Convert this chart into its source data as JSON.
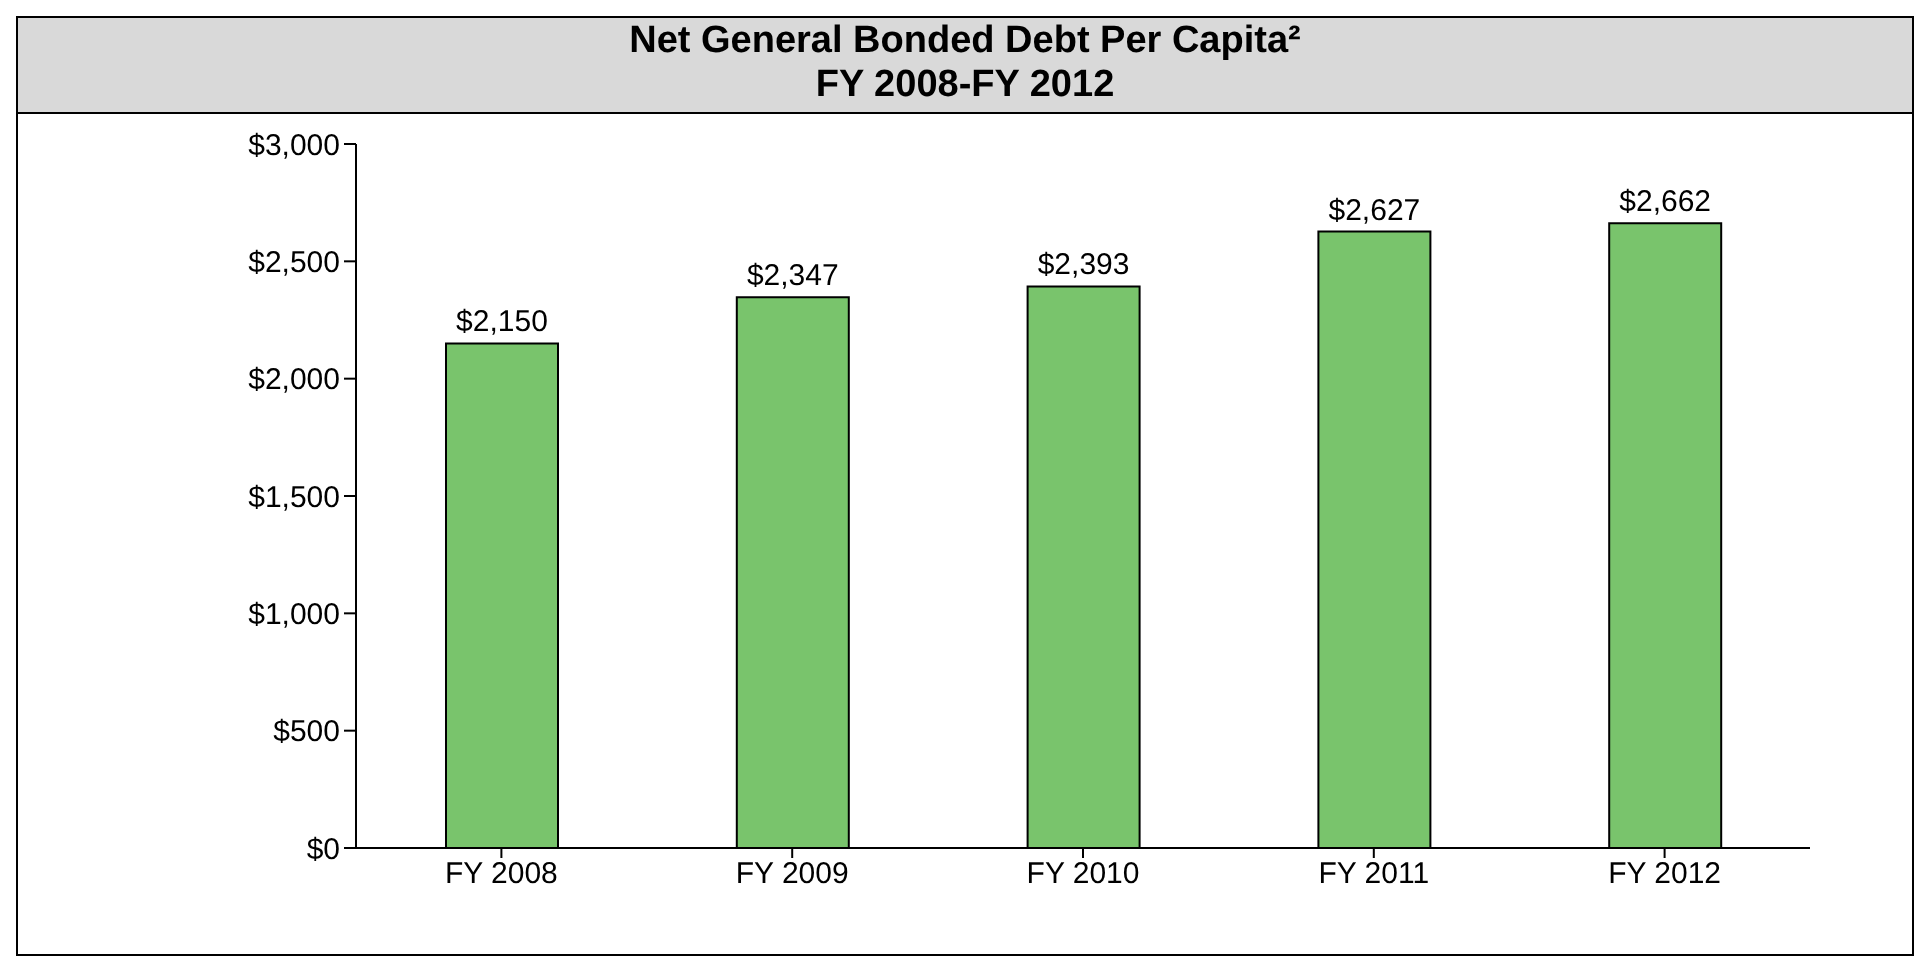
{
  "chart_data": {
    "type": "bar",
    "title": "Net General Bonded Debt Per Capita²",
    "subtitle": "FY 2008-FY 2012",
    "categories": [
      "FY 2008",
      "FY 2009",
      "FY 2010",
      "FY 2011",
      "FY 2012"
    ],
    "values": [
      2150,
      2347,
      2393,
      2627,
      2662
    ],
    "value_labels": [
      "$2,150",
      "$2,347",
      "$2,393",
      "$2,627",
      "$2,662"
    ],
    "color": "#79c46c",
    "ylim": [
      0,
      3000
    ],
    "yticks": [
      {
        "value": 0,
        "label": "$0"
      },
      {
        "value": 500,
        "label": "$500"
      },
      {
        "value": 1000,
        "label": "$1,000"
      },
      {
        "value": 1500,
        "label": "$1,500"
      },
      {
        "value": 2000,
        "label": "$2,000"
      },
      {
        "value": 2500,
        "label": "$2,500"
      },
      {
        "value": 3000,
        "label": "$3,000"
      }
    ],
    "grid": false,
    "legend": false
  }
}
